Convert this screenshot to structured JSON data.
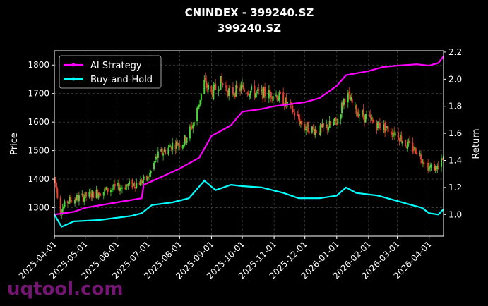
{
  "chart_data": {
    "type": "line",
    "title": "CNINDEX - 399240.SZ",
    "subtitle": "399240.SZ",
    "ylabel_left": "Price",
    "ylabel_right": "Return",
    "ylim_left": [
      1200,
      1850
    ],
    "ylim_right": [
      0.84,
      2.21
    ],
    "yticks_left": [
      1300,
      1400,
      1500,
      1600,
      1700,
      1800
    ],
    "yticks_right": [
      1.0,
      1.2,
      1.4,
      1.6,
      1.8,
      2.0,
      2.2
    ],
    "xticks": [
      "2025-04-01",
      "2025-05-01",
      "2025-06-01",
      "2025-07-01",
      "2025-08-01",
      "2025-09-01",
      "2025-10-01",
      "2025-11-01",
      "2025-12-01",
      "2026-01-01",
      "2026-02-01",
      "2026-03-01",
      "2026-04-01"
    ],
    "grid": true,
    "legend_position": "top-left",
    "watermark": "uqtool.com",
    "colors": {
      "strategy": "#ff00ff",
      "buyhold": "#00ffff",
      "up": "#4cd43a",
      "down": "#e8412f"
    },
    "price_path": [
      [
        "2025-04-01",
        1405
      ],
      [
        "2025-04-07",
        1290
      ],
      [
        "2025-04-15",
        1325
      ],
      [
        "2025-05-01",
        1340
      ],
      [
        "2025-05-15",
        1355
      ],
      [
        "2025-06-01",
        1370
      ],
      [
        "2025-06-20",
        1385
      ],
      [
        "2025-07-01",
        1400
      ],
      [
        "2025-07-10",
        1480
      ],
      [
        "2025-07-25",
        1520
      ],
      [
        "2025-08-05",
        1530
      ],
      [
        "2025-08-15",
        1600
      ],
      [
        "2025-08-25",
        1740
      ],
      [
        "2025-09-01",
        1700
      ],
      [
        "2025-09-10",
        1740
      ],
      [
        "2025-09-20",
        1700
      ],
      [
        "2025-10-01",
        1720
      ],
      [
        "2025-10-15",
        1700
      ],
      [
        "2025-11-01",
        1700
      ],
      [
        "2025-11-15",
        1660
      ],
      [
        "2025-12-01",
        1580
      ],
      [
        "2025-12-15",
        1570
      ],
      [
        "2026-01-01",
        1600
      ],
      [
        "2026-01-10",
        1700
      ],
      [
        "2026-01-20",
        1640
      ],
      [
        "2026-02-01",
        1610
      ],
      [
        "2026-02-10",
        1590
      ],
      [
        "2026-03-01",
        1560
      ],
      [
        "2026-03-10",
        1520
      ],
      [
        "2026-03-20",
        1500
      ],
      [
        "2026-04-01",
        1440
      ],
      [
        "2026-04-10",
        1440
      ],
      [
        "2026-04-15",
        1470
      ]
    ],
    "series": [
      {
        "name": "AI Strategy",
        "values": [
          [
            "2025-04-01",
            1.0
          ],
          [
            "2025-04-20",
            1.02
          ],
          [
            "2025-05-01",
            1.05
          ],
          [
            "2025-06-01",
            1.09
          ],
          [
            "2025-06-25",
            1.12
          ],
          [
            "2025-06-27",
            1.22
          ],
          [
            "2025-07-15",
            1.28
          ],
          [
            "2025-08-01",
            1.34
          ],
          [
            "2025-08-20",
            1.42
          ],
          [
            "2025-09-01",
            1.58
          ],
          [
            "2025-09-20",
            1.66
          ],
          [
            "2025-10-01",
            1.76
          ],
          [
            "2025-10-20",
            1.78
          ],
          [
            "2025-11-01",
            1.8
          ],
          [
            "2025-12-01",
            1.83
          ],
          [
            "2025-12-15",
            1.86
          ],
          [
            "2026-01-01",
            1.95
          ],
          [
            "2026-01-10",
            2.03
          ],
          [
            "2026-02-01",
            2.06
          ],
          [
            "2026-02-15",
            2.09
          ],
          [
            "2026-03-01",
            2.1
          ],
          [
            "2026-03-20",
            2.11
          ],
          [
            "2026-04-01",
            2.1
          ],
          [
            "2026-04-10",
            2.12
          ],
          [
            "2026-04-15",
            2.17
          ]
        ]
      },
      {
        "name": "Buy-and-Hold",
        "values": [
          [
            "2025-04-01",
            1.0
          ],
          [
            "2025-04-08",
            0.91
          ],
          [
            "2025-04-20",
            0.95
          ],
          [
            "2025-05-15",
            0.96
          ],
          [
            "2025-06-15",
            0.99
          ],
          [
            "2025-06-25",
            1.01
          ],
          [
            "2025-07-05",
            1.07
          ],
          [
            "2025-07-25",
            1.09
          ],
          [
            "2025-08-10",
            1.12
          ],
          [
            "2025-08-25",
            1.25
          ],
          [
            "2025-09-05",
            1.18
          ],
          [
            "2025-09-20",
            1.22
          ],
          [
            "2025-10-01",
            1.21
          ],
          [
            "2025-10-20",
            1.2
          ],
          [
            "2025-11-10",
            1.16
          ],
          [
            "2025-11-25",
            1.12
          ],
          [
            "2025-12-15",
            1.12
          ],
          [
            "2026-01-01",
            1.14
          ],
          [
            "2026-01-10",
            1.2
          ],
          [
            "2026-01-20",
            1.16
          ],
          [
            "2026-02-10",
            1.14
          ],
          [
            "2026-03-01",
            1.1
          ],
          [
            "2026-03-15",
            1.07
          ],
          [
            "2026-03-25",
            1.05
          ],
          [
            "2026-04-01",
            1.01
          ],
          [
            "2026-04-10",
            1.0
          ],
          [
            "2026-04-15",
            1.04
          ]
        ]
      }
    ]
  }
}
